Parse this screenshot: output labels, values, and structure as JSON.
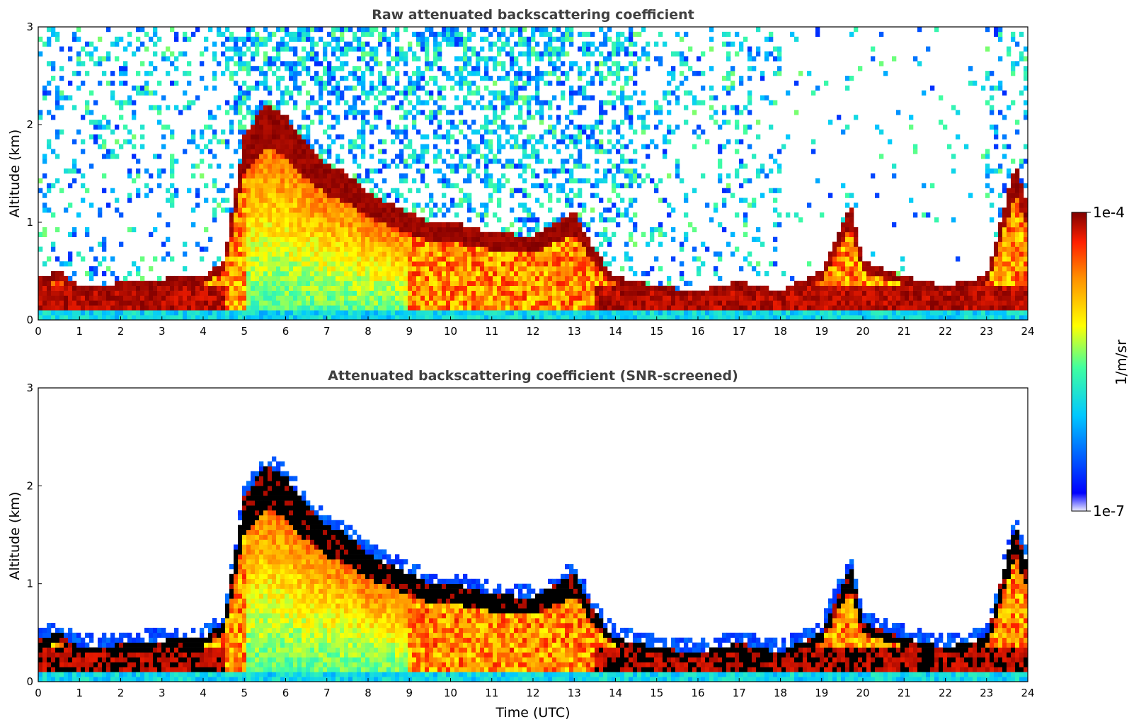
{
  "chart_data": [
    {
      "type": "heatmap",
      "title": "Raw attenuated backscattering coefficient",
      "xlabel": "",
      "ylabel": "Altitude (km)",
      "xlim": [
        0,
        24
      ],
      "ylim": [
        0,
        3
      ],
      "x_ticks": [
        "0",
        "1",
        "2",
        "3",
        "4",
        "5",
        "6",
        "7",
        "8",
        "9",
        "10",
        "11",
        "12",
        "13",
        "14",
        "15",
        "16",
        "17",
        "18",
        "19",
        "20",
        "21",
        "22",
        "23",
        "24"
      ],
      "y_ticks": [
        "0",
        "1",
        "2",
        "3"
      ],
      "screened": false,
      "boundary_layer_top_km": [
        {
          "t": 0,
          "h": 0.42
        },
        {
          "t": 0.5,
          "h": 0.5
        },
        {
          "t": 1,
          "h": 0.35
        },
        {
          "t": 2,
          "h": 0.38
        },
        {
          "t": 3,
          "h": 0.42
        },
        {
          "t": 3.5,
          "h": 0.45
        },
        {
          "t": 4,
          "h": 0.45
        },
        {
          "t": 4.5,
          "h": 0.6
        },
        {
          "t": 5,
          "h": 1.9
        },
        {
          "t": 5.5,
          "h": 2.2
        },
        {
          "t": 6,
          "h": 2.1
        },
        {
          "t": 6.5,
          "h": 1.8
        },
        {
          "t": 7,
          "h": 1.6
        },
        {
          "t": 7.5,
          "h": 1.5
        },
        {
          "t": 8,
          "h": 1.3
        },
        {
          "t": 8.5,
          "h": 1.2
        },
        {
          "t": 9,
          "h": 1.1
        },
        {
          "t": 9.5,
          "h": 1.0
        },
        {
          "t": 10,
          "h": 1.0
        },
        {
          "t": 11,
          "h": 0.9
        },
        {
          "t": 12,
          "h": 0.85
        },
        {
          "t": 13,
          "h": 1.1
        },
        {
          "t": 13.5,
          "h": 0.7
        },
        {
          "t": 14,
          "h": 0.45
        },
        {
          "t": 15,
          "h": 0.35
        },
        {
          "t": 16,
          "h": 0.3
        },
        {
          "t": 17,
          "h": 0.4
        },
        {
          "t": 18,
          "h": 0.3
        },
        {
          "t": 19,
          "h": 0.5
        },
        {
          "t": 19.7,
          "h": 1.2
        },
        {
          "t": 20,
          "h": 0.6
        },
        {
          "t": 21,
          "h": 0.45
        },
        {
          "t": 22,
          "h": 0.35
        },
        {
          "t": 23,
          "h": 0.45
        },
        {
          "t": 23.7,
          "h": 1.6
        },
        {
          "t": 24,
          "h": 1.2
        }
      ]
    },
    {
      "type": "heatmap",
      "title": "Attenuated backscattering coefficient (SNR-screened)",
      "xlabel": "Time (UTC)",
      "ylabel": "Altitude (km)",
      "xlim": [
        0,
        24
      ],
      "ylim": [
        0,
        3
      ],
      "x_ticks": [
        "0",
        "1",
        "2",
        "3",
        "4",
        "5",
        "6",
        "7",
        "8",
        "9",
        "10",
        "11",
        "12",
        "13",
        "14",
        "15",
        "16",
        "17",
        "18",
        "19",
        "20",
        "21",
        "22",
        "23",
        "24"
      ],
      "y_ticks": [
        "0",
        "1",
        "2",
        "3"
      ],
      "screened": true
    }
  ],
  "colorbar": {
    "label": "1/m/sr",
    "max_label": "1e-4",
    "min_label": "1e-7",
    "colormap": "jet",
    "colors": [
      "#e8e8ff",
      "#0000ff",
      "#00c8ff",
      "#40ffa0",
      "#ffff00",
      "#ff9000",
      "#ff2000",
      "#800000"
    ]
  }
}
